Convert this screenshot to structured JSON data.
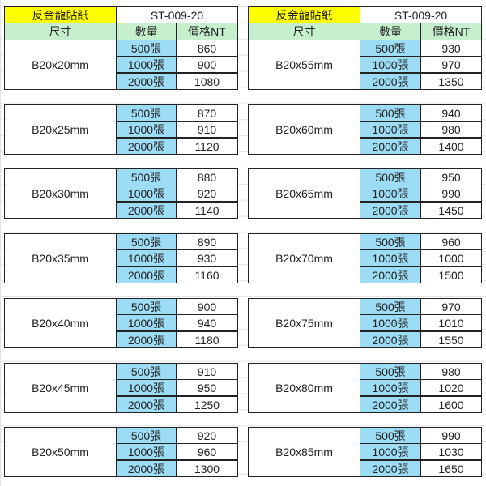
{
  "colors": {
    "title_bg": "#ffff00",
    "header_bg": "#c6efce",
    "qty_bg": "#9ddcf5"
  },
  "tables": [
    {
      "title": "反金龍貼紙",
      "code": "ST-009-20",
      "headers": [
        "尺寸",
        "數量",
        "價格NT"
      ],
      "groups": [
        {
          "size": "B20x20mm",
          "rows": [
            [
              "500張",
              "860"
            ],
            [
              "1000張",
              "900"
            ],
            [
              "2000張",
              "1080"
            ]
          ]
        },
        {
          "size": "B20x25mm",
          "rows": [
            [
              "500張",
              "870"
            ],
            [
              "1000張",
              "910"
            ],
            [
              "2000張",
              "1120"
            ]
          ]
        },
        {
          "size": "B20x30mm",
          "rows": [
            [
              "500張",
              "880"
            ],
            [
              "1000張",
              "920"
            ],
            [
              "2000張",
              "1140"
            ]
          ]
        },
        {
          "size": "B20x35mm",
          "rows": [
            [
              "500張",
              "890"
            ],
            [
              "1000張",
              "930"
            ],
            [
              "2000張",
              "1160"
            ]
          ]
        },
        {
          "size": "B20x40mm",
          "rows": [
            [
              "500張",
              "900"
            ],
            [
              "1000張",
              "940"
            ],
            [
              "2000張",
              "1180"
            ]
          ]
        },
        {
          "size": "B20x45mm",
          "rows": [
            [
              "500張",
              "910"
            ],
            [
              "1000張",
              "950"
            ],
            [
              "2000張",
              "1250"
            ]
          ]
        },
        {
          "size": "B20x50mm",
          "rows": [
            [
              "500張",
              "920"
            ],
            [
              "1000張",
              "960"
            ],
            [
              "2000張",
              "1300"
            ]
          ]
        }
      ]
    },
    {
      "title": "反金龍貼紙",
      "code": "ST-009-20",
      "headers": [
        "尺寸",
        "數量",
        "價格NT"
      ],
      "groups": [
        {
          "size": "B20x55mm",
          "rows": [
            [
              "500張",
              "930"
            ],
            [
              "1000張",
              "970"
            ],
            [
              "2000張",
              "1350"
            ]
          ]
        },
        {
          "size": "B20x60mm",
          "rows": [
            [
              "500張",
              "940"
            ],
            [
              "1000張",
              "980"
            ],
            [
              "2000張",
              "1400"
            ]
          ]
        },
        {
          "size": "B20x65mm",
          "rows": [
            [
              "500張",
              "950"
            ],
            [
              "1000張",
              "990"
            ],
            [
              "2000張",
              "1450"
            ]
          ]
        },
        {
          "size": "B20x70mm",
          "rows": [
            [
              "500張",
              "960"
            ],
            [
              "1000張",
              "1000"
            ],
            [
              "2000張",
              "1500"
            ]
          ]
        },
        {
          "size": "B20x75mm",
          "rows": [
            [
              "500張",
              "970"
            ],
            [
              "1000張",
              "1010"
            ],
            [
              "2000張",
              "1550"
            ]
          ]
        },
        {
          "size": "B20x80mm",
          "rows": [
            [
              "500張",
              "980"
            ],
            [
              "1000張",
              "1020"
            ],
            [
              "2000張",
              "1600"
            ]
          ]
        },
        {
          "size": "B20x85mm",
          "rows": [
            [
              "500張",
              "990"
            ],
            [
              "1000張",
              "1030"
            ],
            [
              "2000張",
              "1650"
            ]
          ]
        }
      ]
    }
  ]
}
